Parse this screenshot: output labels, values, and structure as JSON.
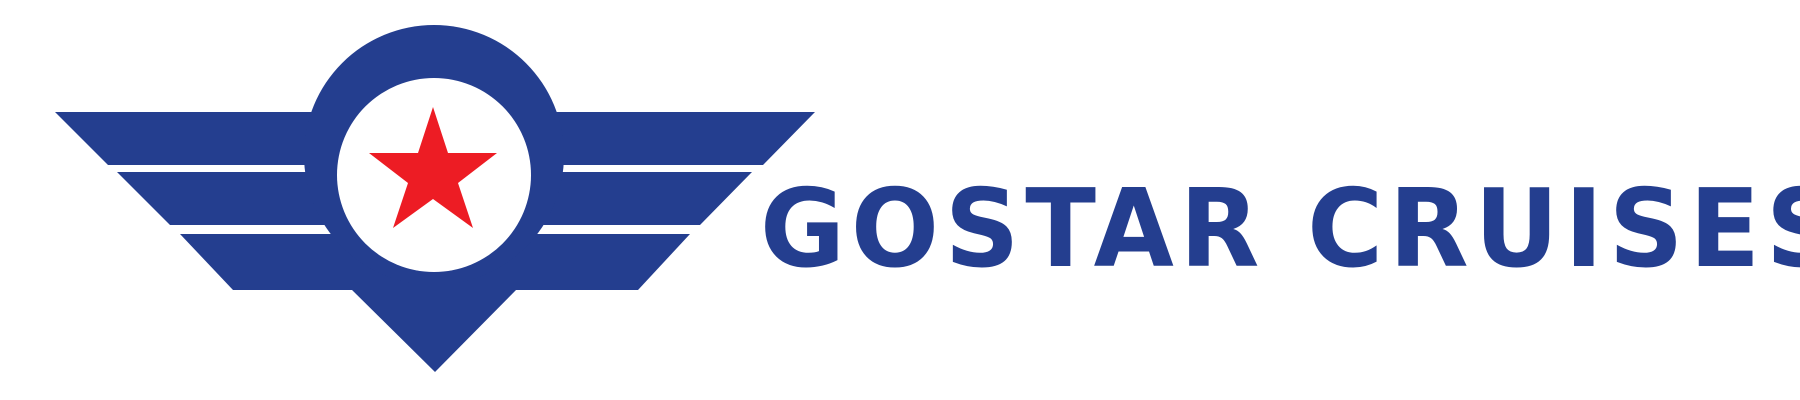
{
  "brand": {
    "name": "GOSTAR CRUISES",
    "colors": {
      "navy": "#243e8f",
      "red": "#ed1c24",
      "background": "#ffffff"
    }
  },
  "emblem": {
    "icon": "winged-star-emblem-icon"
  }
}
